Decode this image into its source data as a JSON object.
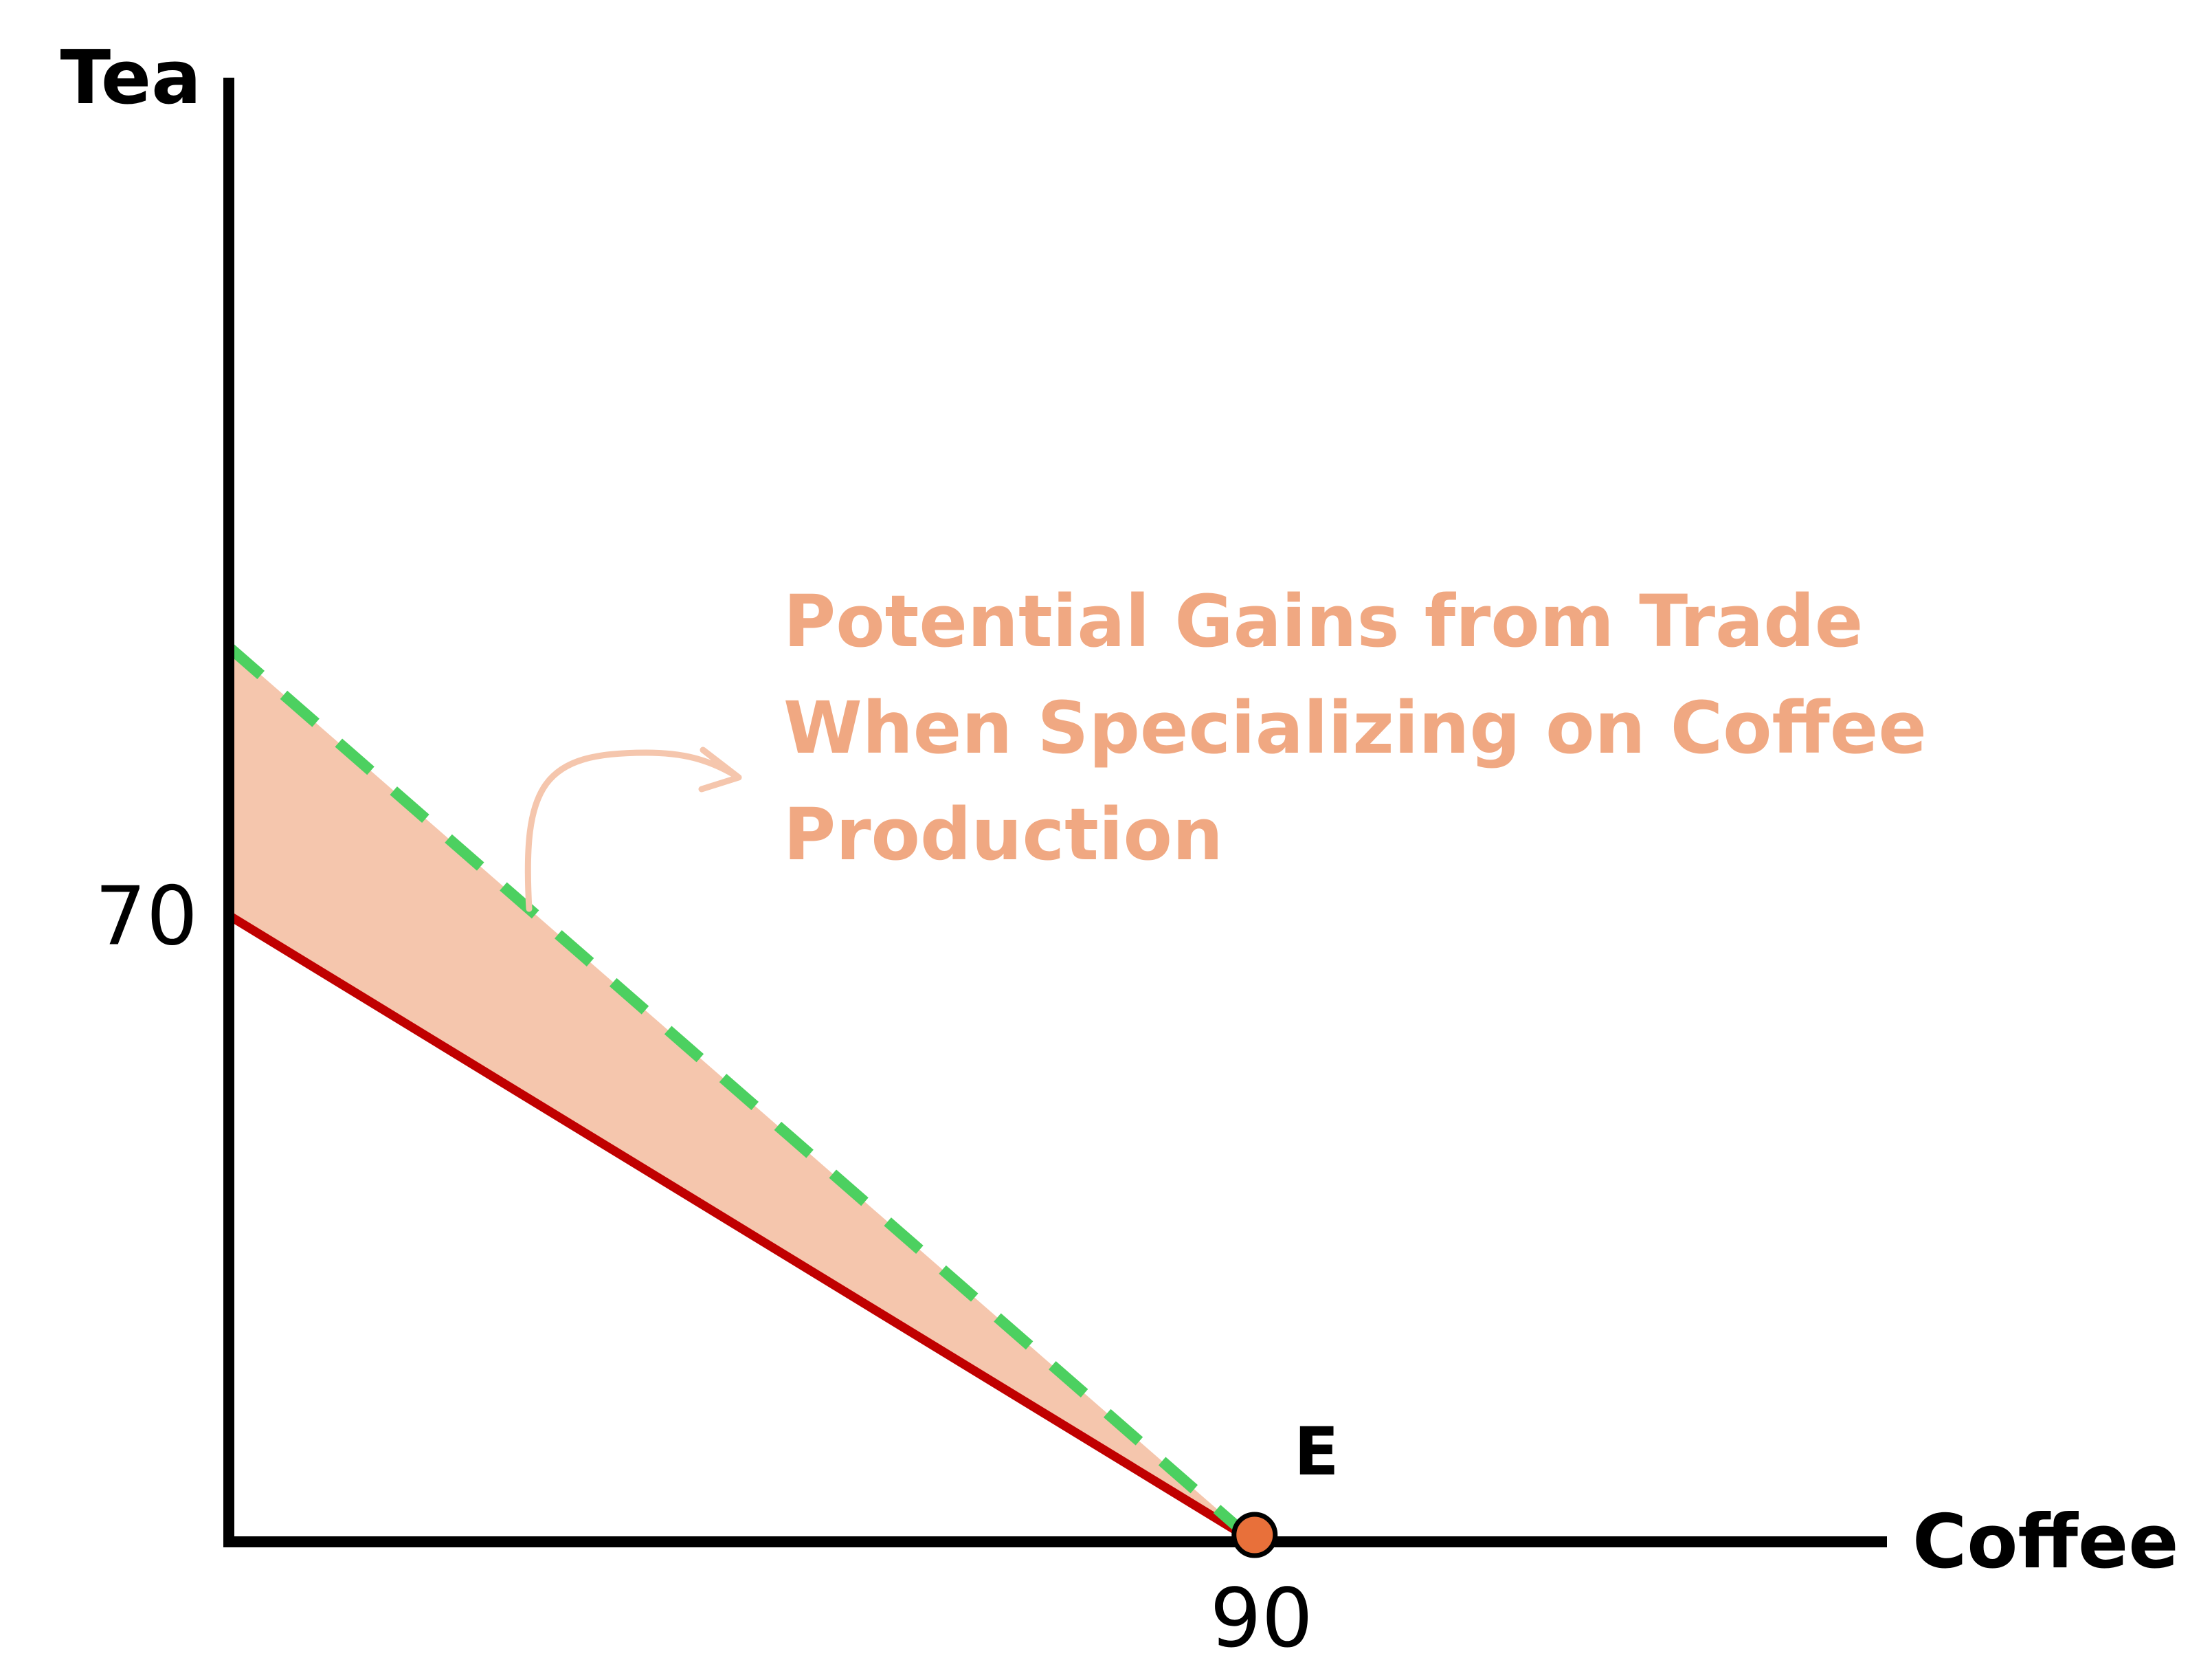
{
  "chart_data": {
    "type": "line",
    "xlabel": "Coffee",
    "ylabel": "Tea",
    "xlim": [
      0,
      145
    ],
    "ylim": [
      0,
      163
    ],
    "x_ticks": [
      {
        "value": 90,
        "label": "90"
      }
    ],
    "y_ticks": [
      {
        "value": 70,
        "label": "70"
      }
    ],
    "series": [
      {
        "style": "solid",
        "color": "#c00000",
        "points": [
          [
            0,
            70
          ],
          [
            90,
            0
          ]
        ]
      },
      {
        "style": "dashed",
        "color": "#4cd060",
        "points": [
          [
            0,
            100
          ],
          [
            90,
            0
          ]
        ]
      }
    ],
    "shaded_region": {
      "color": "#f5c6ad",
      "points": [
        [
          0,
          100
        ],
        [
          90,
          0
        ],
        [
          0,
          70
        ]
      ]
    },
    "point": {
      "label": "E",
      "x": 90,
      "y": 0,
      "color": "#e8703a"
    },
    "annotation": {
      "lines": [
        "Potential Gains from Trade",
        "When Specializing on Coffee",
        "Production"
      ],
      "color": "#f0a882",
      "arrow_color": "#f5c6ad"
    },
    "grid": false,
    "legend": "none"
  }
}
